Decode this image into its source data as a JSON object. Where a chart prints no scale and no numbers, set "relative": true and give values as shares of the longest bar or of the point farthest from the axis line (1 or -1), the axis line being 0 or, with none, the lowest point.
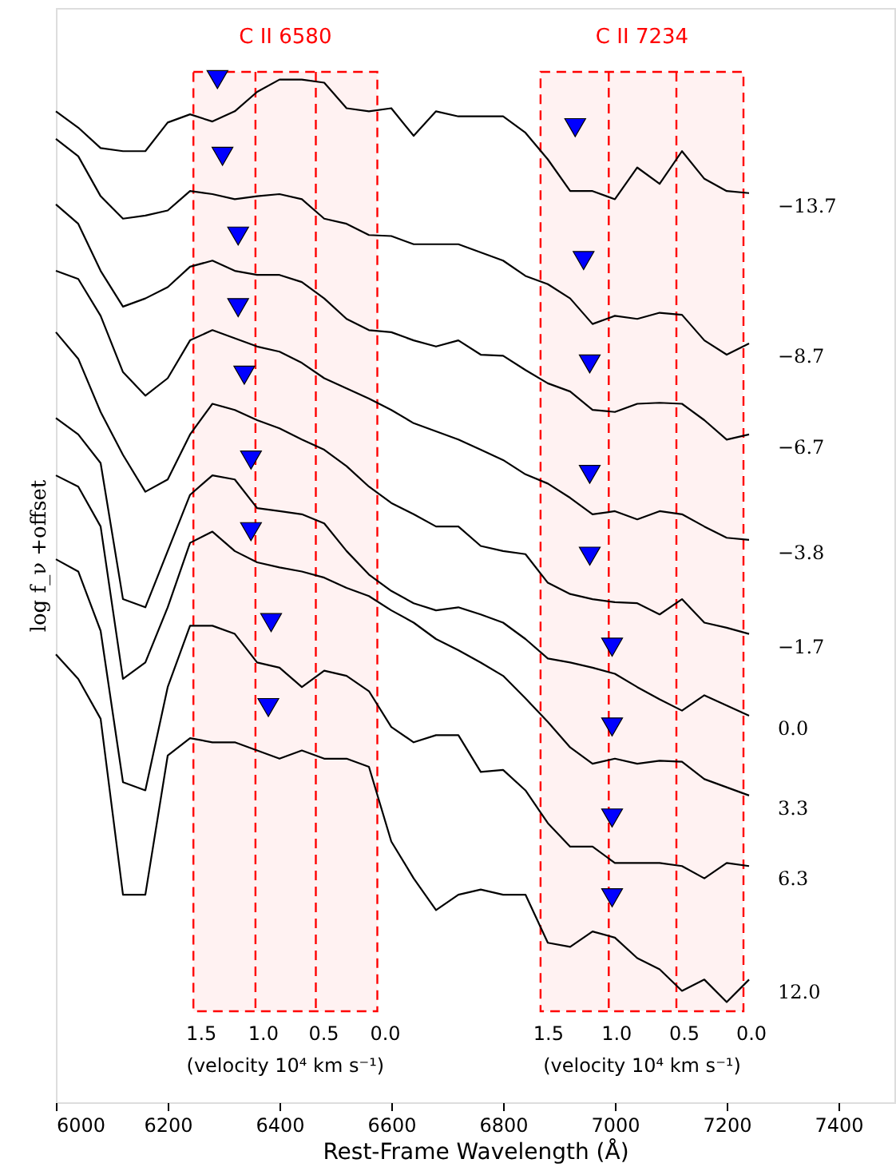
{
  "chart_data": {
    "type": "line",
    "relative": true,
    "xlabel": "Rest-Frame Wavelength (Å)",
    "ylabel": "log f_ν +offset",
    "xlim": [
      6000,
      7500
    ],
    "xticks": [
      6000,
      6200,
      6400,
      6600,
      6800,
      7000,
      7200,
      7400
    ],
    "grid": false,
    "marker": "none",
    "line_style": "solid",
    "x": [
      6000,
      6040,
      6080,
      6120,
      6160,
      6200,
      6240,
      6280,
      6320,
      6360,
      6400,
      6440,
      6480,
      6520,
      6560,
      6600,
      6640,
      6680,
      6720,
      6760,
      6800,
      6840,
      6880,
      6920,
      6960,
      7000,
      7040,
      7080,
      7120,
      7160,
      7200,
      7240
    ],
    "series": [
      {
        "name": "−13.7",
        "color": "#000000",
        "values": [
          0.969,
          0.953,
          0.933,
          0.93,
          0.93,
          0.958,
          0.966,
          0.959,
          0.969,
          0.988,
          1.0,
          1.0,
          0.997,
          0.972,
          0.969,
          0.972,
          0.945,
          0.969,
          0.964,
          0.964,
          0.964,
          0.948,
          0.922,
          0.891,
          0.891,
          0.883,
          0.914,
          0.898,
          0.93,
          0.903,
          0.891,
          0.889
        ]
      },
      {
        "name": "−8.7",
        "color": "#000000",
        "values": [
          0.942,
          0.925,
          0.886,
          0.864,
          0.867,
          0.872,
          0.891,
          0.888,
          0.883,
          0.886,
          0.888,
          0.883,
          0.864,
          0.859,
          0.848,
          0.847,
          0.839,
          0.839,
          0.839,
          0.831,
          0.823,
          0.808,
          0.8,
          0.786,
          0.761,
          0.769,
          0.766,
          0.772,
          0.77,
          0.745,
          0.731,
          0.742
        ]
      },
      {
        "name": "−6.7",
        "color": "#000000",
        "values": [
          0.878,
          0.859,
          0.813,
          0.778,
          0.786,
          0.797,
          0.817,
          0.823,
          0.813,
          0.809,
          0.809,
          0.802,
          0.786,
          0.766,
          0.755,
          0.753,
          0.745,
          0.739,
          0.745,
          0.731,
          0.73,
          0.716,
          0.703,
          0.695,
          0.677,
          0.675,
          0.683,
          0.684,
          0.683,
          0.667,
          0.648,
          0.653
        ]
      },
      {
        "name": "−3.8",
        "color": "#000000",
        "values": [
          0.813,
          0.805,
          0.769,
          0.714,
          0.691,
          0.708,
          0.745,
          0.755,
          0.747,
          0.739,
          0.734,
          0.723,
          0.708,
          0.698,
          0.688,
          0.677,
          0.664,
          0.656,
          0.648,
          0.638,
          0.628,
          0.614,
          0.605,
          0.591,
          0.575,
          0.578,
          0.57,
          0.578,
          0.575,
          0.563,
          0.552,
          0.55
        ]
      },
      {
        "name": "−1.7",
        "color": "#000000",
        "values": [
          0.753,
          0.727,
          0.675,
          0.633,
          0.597,
          0.609,
          0.653,
          0.683,
          0.677,
          0.667,
          0.659,
          0.648,
          0.638,
          0.622,
          0.602,
          0.586,
          0.575,
          0.563,
          0.563,
          0.544,
          0.539,
          0.536,
          0.508,
          0.497,
          0.492,
          0.489,
          0.488,
          0.477,
          0.492,
          0.469,
          0.464,
          0.458
        ]
      },
      {
        "name": "0.0",
        "color": "#000000",
        "values": [
          0.669,
          0.653,
          0.625,
          0.492,
          0.484,
          0.539,
          0.594,
          0.613,
          0.609,
          0.581,
          0.578,
          0.575,
          0.566,
          0.539,
          0.516,
          0.5,
          0.488,
          0.481,
          0.484,
          0.477,
          0.469,
          0.453,
          0.434,
          0.43,
          0.425,
          0.419,
          0.406,
          0.394,
          0.383,
          0.398,
          0.388,
          0.378
        ]
      },
      {
        "name": "3.3",
        "color": "#000000",
        "values": [
          0.613,
          0.602,
          0.563,
          0.414,
          0.43,
          0.484,
          0.547,
          0.558,
          0.539,
          0.528,
          0.523,
          0.519,
          0.513,
          0.503,
          0.495,
          0.481,
          0.469,
          0.453,
          0.442,
          0.43,
          0.417,
          0.395,
          0.372,
          0.347,
          0.331,
          0.336,
          0.331,
          0.334,
          0.333,
          0.316,
          0.308,
          0.3
        ]
      },
      {
        "name": "6.3",
        "color": "#000000",
        "values": [
          0.531,
          0.519,
          0.461,
          0.313,
          0.305,
          0.406,
          0.466,
          0.466,
          0.458,
          0.43,
          0.425,
          0.406,
          0.422,
          0.417,
          0.402,
          0.367,
          0.352,
          0.359,
          0.359,
          0.323,
          0.325,
          0.305,
          0.273,
          0.25,
          0.25,
          0.234,
          0.234,
          0.234,
          0.231,
          0.219,
          0.234,
          0.231
        ]
      },
      {
        "name": "12.0",
        "color": "#000000",
        "values": [
          0.438,
          0.414,
          0.375,
          0.203,
          0.203,
          0.339,
          0.356,
          0.352,
          0.352,
          0.344,
          0.336,
          0.344,
          0.336,
          0.336,
          0.328,
          0.255,
          0.219,
          0.188,
          0.203,
          0.208,
          0.203,
          0.203,
          0.156,
          0.152,
          0.167,
          0.161,
          0.141,
          0.13,
          0.109,
          0.12,
          0.098,
          0.12
        ]
      },
      {
        "type": "scatter",
        "marker": "triangle",
        "color": "#0000ff",
        "x": [
          6289,
          6298,
          6326,
          6326,
          6337,
          6349,
          6349,
          6385,
          6380,
          6929,
          6944,
          6955,
          6955,
          6955,
          6995,
          6995,
          6995,
          6995
        ],
        "values": [
          1.0,
          0.925,
          0.847,
          0.777,
          0.711,
          0.628,
          0.558,
          0.469,
          0.386,
          0.953,
          0.823,
          0.722,
          0.614,
          0.534,
          0.445,
          0.367,
          0.278,
          0.2
        ]
      }
    ],
    "bands": [
      {
        "axis": "x",
        "from": 6246,
        "to": 6575,
        "label": "C II 6580",
        "color": "#ff0000"
      },
      {
        "axis": "x",
        "from": 6867,
        "to": 7230,
        "label": "C II 7234",
        "color": "#ff0000"
      }
    ],
    "ref_lines": [
      {
        "axis": "x",
        "value": 6357,
        "color": "#ff0000",
        "line_style": "dashed"
      },
      {
        "axis": "x",
        "value": 6465,
        "color": "#ff0000",
        "line_style": "dashed"
      },
      {
        "axis": "x",
        "value": 6989,
        "color": "#ff0000",
        "line_style": "dashed"
      },
      {
        "axis": "x",
        "value": 7110,
        "color": "#ff0000",
        "line_style": "dashed"
      }
    ],
    "annotations": [
      "1.5",
      "1.0",
      "0.5",
      "0.0",
      "(velocity 10⁴ km s⁻¹)",
      "1.5",
      "1.0",
      "0.5",
      "0.0",
      "(velocity 10⁴ km s⁻¹)"
    ]
  }
}
